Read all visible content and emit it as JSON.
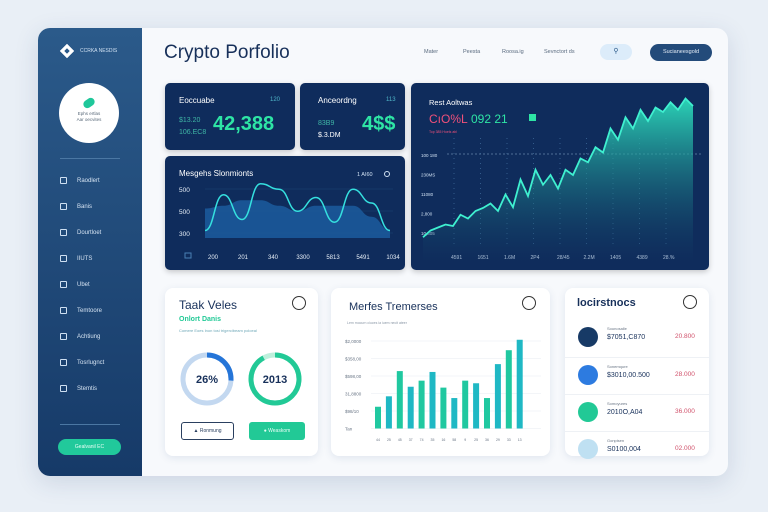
{
  "header": {
    "title": "Crypto Porfolio",
    "nav": [
      "Mater",
      "Peesta",
      "Roosa.ig",
      "Sevnctort ds"
    ],
    "search_icon": "search-icon",
    "button": "Sucianeesgold"
  },
  "sidebar": {
    "brand": "CCRKA NESDIS",
    "profile_lines": [
      "Ephs ertlas",
      "Aar oecvites"
    ],
    "items": [
      "Raodlert",
      "Banis",
      "Dourtloet",
      "IIUTS",
      "Ubet",
      "Temtoore",
      "Achtiung",
      "Tosrlugnct",
      "Stemtis"
    ],
    "button": "Gealvanil EC"
  },
  "stat1": {
    "title": "Eoccuabe",
    "badge": "120",
    "sub1": "$13.20",
    "sub2": "106.EC8",
    "value": "42,388"
  },
  "stat2": {
    "title": "Anceordng",
    "badge": "113",
    "sub1": "83B9",
    "sub2": "$.3.DM",
    "value": "4$$"
  },
  "colors": {
    "accent": "#23e0a6",
    "dark": "#0f2c5c",
    "pink": "#f0507a",
    "sidebar": "#1f4a7a"
  },
  "chart_data": [
    {
      "type": "line",
      "title": "Mesgehs Slonmionts",
      "badge": "1 AI60",
      "yticks": [
        "500",
        "500",
        "300"
      ],
      "xticks": [
        "200",
        "201",
        "340",
        "3300",
        "5813",
        "5491",
        "1034"
      ],
      "values": [
        0.1,
        0.75,
        0.3,
        0.95,
        0.85,
        0.45,
        0.7,
        0.25,
        0.85,
        0.6,
        0.1
      ],
      "area": [
        0.5,
        0.55,
        0.65,
        0.65,
        0.55,
        0.45,
        0.55,
        0.55,
        0.55,
        0.35,
        0.1
      ]
    },
    {
      "type": "area",
      "title": "Rest Aoltwas",
      "headline_a": "CıO%L",
      "headline_b": "092 21",
      "caption": "Top 385 Hoels abl",
      "yticks": [
        "100 180",
        "230MS",
        "11080",
        "2,800",
        "10,305"
      ],
      "xticks": [
        "4591",
        "1651",
        "1.6M",
        "2P4",
        "28/45",
        "2.2M",
        "1405",
        "4389",
        "28.%"
      ],
      "values": [
        5,
        14,
        18,
        22,
        20,
        35,
        30,
        40,
        44,
        50,
        40,
        62,
        45,
        82,
        60,
        95,
        75,
        88,
        70,
        95,
        88,
        110,
        105,
        125,
        118,
        150,
        135,
        165,
        150,
        175,
        160,
        178,
        172,
        185,
        175,
        190,
        180
      ]
    },
    {
      "type": "bar",
      "title": "Merfes Tremerses",
      "subtitle": "Lem mocurn ciuces ia iuem necit ateer",
      "yticks": [
        "$2,0000",
        "$358,00",
        "$598,00",
        "31,8800",
        "$98/10",
        "Tan"
      ],
      "ylim": [
        0,
        100
      ],
      "categories": [
        "44",
        "25",
        "45",
        "37",
        "74",
        "35",
        "16",
        "58",
        "9",
        "25",
        "36",
        "29",
        "33",
        "13"
      ],
      "values": [
        25,
        37,
        66,
        48,
        55,
        65,
        47,
        35,
        55,
        52,
        35,
        74,
        90,
        102
      ]
    }
  ],
  "task": {
    "title": "Taak Veles",
    "subtitle": "Onlort Danis",
    "note": "Comere Eoes Inon tosi trigercibeam poloeal",
    "ring1": {
      "label": "26%",
      "fraction": 0.26
    },
    "ring2": {
      "label": "2013",
      "fraction": 0.92
    },
    "btn1": "Ronmung",
    "btn2": "Weaskom"
  },
  "invest": {
    "title": "locirstnocs",
    "rows": [
      {
        "label": "Sounosalle",
        "value": "$7051,C870",
        "change": "20.800",
        "color": "#173a66"
      },
      {
        "label": "Sonemqure",
        "value": "$3010,00.500",
        "change": "28.000",
        "color": "#2d7be0"
      },
      {
        "label": "Somoyures",
        "value": "2010O,A04",
        "change": "36.000",
        "color": "#22c996"
      },
      {
        "label": "Gonpisen",
        "value": "S0100,004",
        "change": "02.000",
        "color": "#bfe0f2"
      }
    ]
  }
}
